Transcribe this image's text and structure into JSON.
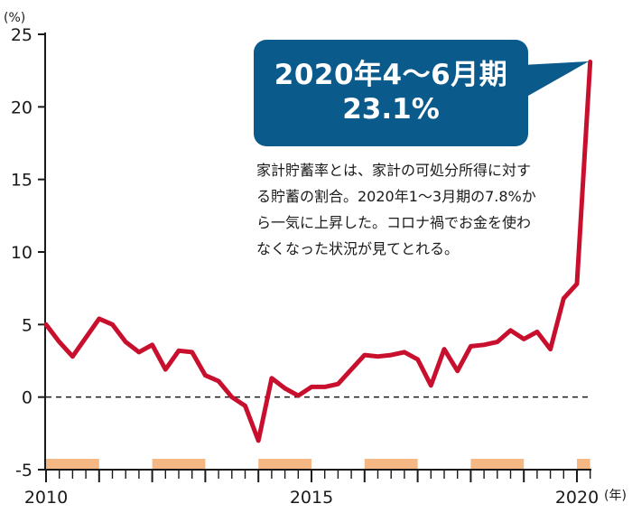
{
  "chart_data": {
    "type": "line",
    "y_unit": "(%)",
    "x_unit": "(年)",
    "ylim": [
      -5,
      25
    ],
    "yticks": [
      25,
      20,
      15,
      10,
      5,
      0,
      -5
    ],
    "xlim": [
      2010,
      2020.5
    ],
    "xticks": [
      {
        "value": 2010,
        "label": "2010"
      },
      {
        "value": 2015,
        "label": "2015"
      },
      {
        "value": 2020,
        "label": "2020"
      }
    ],
    "baseline": 0,
    "shaded_periods": [
      [
        2010,
        2011
      ],
      [
        2012,
        2013
      ],
      [
        2014,
        2015
      ],
      [
        2016,
        2017
      ],
      [
        2018,
        2019
      ],
      [
        2020,
        2020.25
      ]
    ],
    "series": [
      {
        "color": "#c8102e",
        "x": [
          2010.0,
          2010.25,
          2010.5,
          2010.75,
          2011.0,
          2011.25,
          2011.5,
          2011.75,
          2012.0,
          2012.25,
          2012.5,
          2012.75,
          2013.0,
          2013.25,
          2013.5,
          2013.75,
          2014.0,
          2014.25,
          2014.5,
          2014.75,
          2015.0,
          2015.25,
          2015.5,
          2015.75,
          2016.0,
          2016.25,
          2016.5,
          2016.75,
          2017.0,
          2017.25,
          2017.5,
          2017.75,
          2018.0,
          2018.25,
          2018.5,
          2018.75,
          2019.0,
          2019.25,
          2019.5,
          2019.75,
          2020.0,
          2020.25
        ],
        "values": [
          5.0,
          3.8,
          2.8,
          4.1,
          5.4,
          5.0,
          3.8,
          3.1,
          3.6,
          1.9,
          3.2,
          3.1,
          1.5,
          1.1,
          0.0,
          -0.6,
          -3.0,
          1.3,
          0.6,
          0.1,
          0.7,
          0.7,
          0.9,
          1.9,
          2.9,
          2.8,
          2.9,
          3.1,
          2.6,
          0.8,
          3.3,
          1.8,
          3.5,
          3.6,
          3.8,
          4.6,
          4.0,
          4.5,
          3.3,
          6.8,
          7.8,
          23.1
        ]
      }
    ],
    "callout": {
      "line1": "2020年4〜6月期",
      "line2": "23.1%"
    },
    "annotation": "家計貯蓄率とは、家計の可処分所得に対する貯蓄の割合。2020年1〜3月期の7.8%から一気に上昇した。コロナ禍でお金を使わなくなった状況が見てとれる。"
  },
  "colors": {
    "line": "#c8102e",
    "callout_bg": "#0b5a8c",
    "shade": "#f5b885",
    "axis": "#1a1a1a"
  }
}
